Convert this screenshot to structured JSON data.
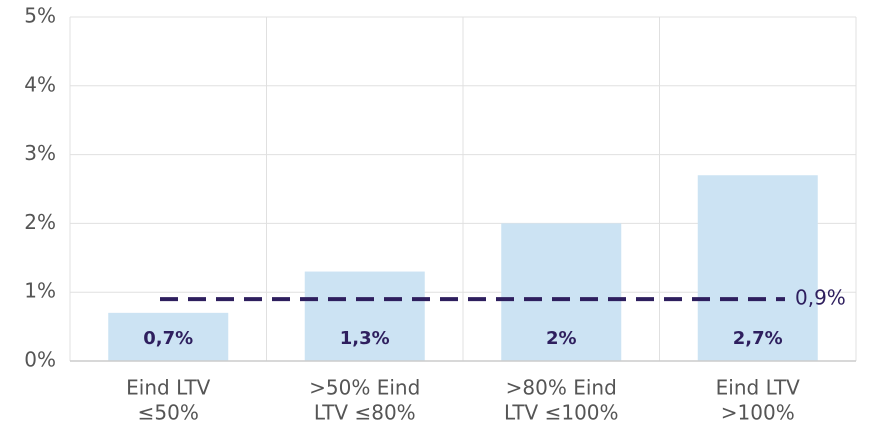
{
  "chart_data": {
    "type": "bar",
    "categories": [
      [
        "Eind LTV",
        "≤50%"
      ],
      [
        ">50% Eind",
        "LTV ≤80%"
      ],
      [
        ">80% Eind",
        "LTV ≤100%"
      ],
      [
        "Eind LTV",
        ">100%"
      ]
    ],
    "values": [
      0.7,
      1.3,
      2,
      2.7
    ],
    "value_labels": [
      "0,7%",
      "1,3%",
      "2%",
      "2,7%"
    ],
    "color": "#cce3f3",
    "label_color": "#2e1f5e",
    "ylim": [
      0,
      5
    ],
    "yticks": [
      {
        "value": 0,
        "label": "0%"
      },
      {
        "value": 1,
        "label": "1%"
      },
      {
        "value": 2,
        "label": "2%"
      },
      {
        "value": 3,
        "label": "3%"
      },
      {
        "value": 4,
        "label": "4%"
      },
      {
        "value": 5,
        "label": "5%"
      }
    ],
    "grid": true,
    "reference_line": {
      "value": 0.9,
      "label": "0,9%",
      "color": "#2e1f5e"
    }
  }
}
